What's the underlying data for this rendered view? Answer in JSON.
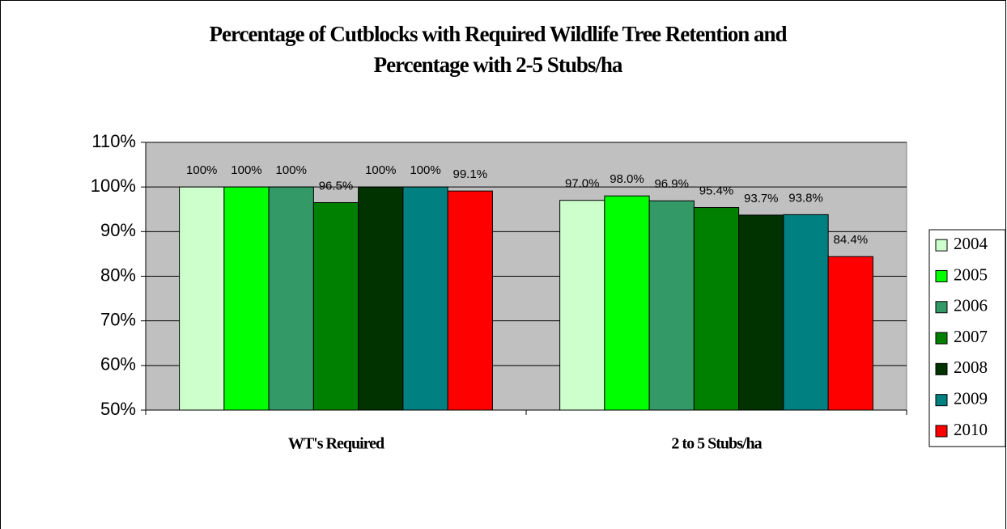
{
  "chart_data": {
    "type": "bar",
    "title": [
      "Percentage of Cutblocks with Required Wildlife Tree Retention and",
      "Percentage with 2-5 Stubs/ha"
    ],
    "categories": [
      "WT's Required",
      "2 to 5 Stubs/ha"
    ],
    "series": [
      {
        "name": "2004",
        "color": "#ccffcc",
        "values": [
          100,
          97.0
        ],
        "value_labels": [
          "100%",
          "97.0%"
        ]
      },
      {
        "name": "2005",
        "color": "#00ff00",
        "values": [
          100,
          98.0
        ],
        "value_labels": [
          "100%",
          "98.0%"
        ]
      },
      {
        "name": "2006",
        "color": "#339966",
        "values": [
          100,
          96.9
        ],
        "value_labels": [
          "100%",
          "96.9%"
        ]
      },
      {
        "name": "2007",
        "color": "#008000",
        "values": [
          96.5,
          95.4
        ],
        "value_labels": [
          "96.5%",
          "95.4%"
        ]
      },
      {
        "name": "2008",
        "color": "#003300",
        "values": [
          100,
          93.7
        ],
        "value_labels": [
          "100%",
          "93.7%"
        ]
      },
      {
        "name": "2009",
        "color": "#008080",
        "values": [
          100,
          93.8
        ],
        "value_labels": [
          "100%",
          "93.8%"
        ]
      },
      {
        "name": "2010",
        "color": "#ff0000",
        "values": [
          99.1,
          84.4
        ],
        "value_labels": [
          "99.1%",
          "84.4%"
        ]
      }
    ],
    "ylim": [
      50,
      110
    ],
    "yticks": [
      {
        "value": 50,
        "label": "50%"
      },
      {
        "value": 60,
        "label": "60%"
      },
      {
        "value": 70,
        "label": "70%"
      },
      {
        "value": 80,
        "label": "80%"
      },
      {
        "value": 90,
        "label": "90%"
      },
      {
        "value": 100,
        "label": "100%"
      },
      {
        "value": 110,
        "label": "110%"
      }
    ],
    "grid": true,
    "legend": "right"
  }
}
